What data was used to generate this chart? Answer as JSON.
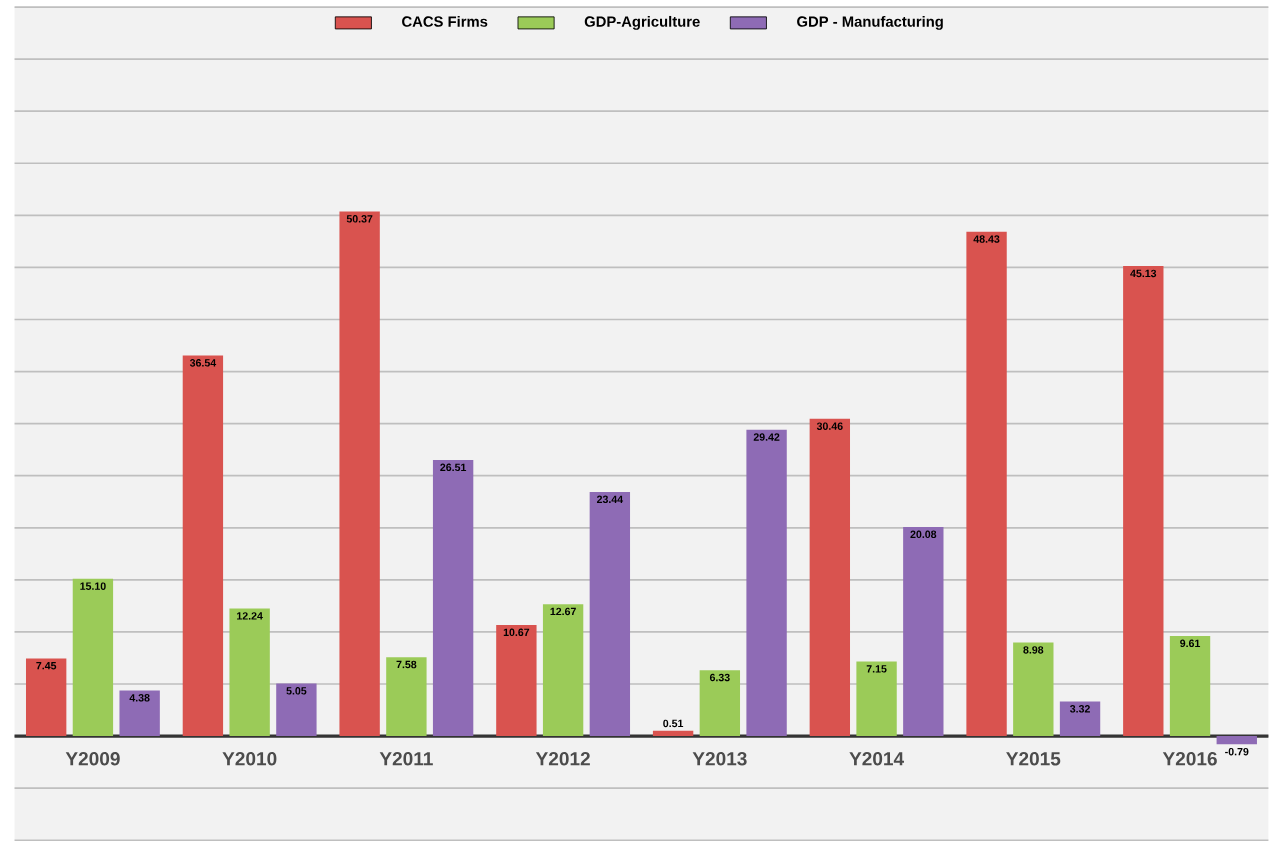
{
  "chart_data": {
    "type": "bar",
    "categories": [
      "Y2009",
      "Y2010",
      "Y2011",
      "Y2012",
      "Y2013",
      "Y2014",
      "Y2015",
      "Y2016"
    ],
    "series": [
      {
        "name": "CACS Firms",
        "color": "#d9534f",
        "values": [
          7.45,
          36.54,
          50.37,
          10.67,
          0.51,
          30.46,
          48.43,
          45.13
        ],
        "value_labels": [
          "7.45",
          "36.54",
          "50.37",
          "10.67",
          "0.51",
          "30.46",
          "48.43",
          "45.13"
        ]
      },
      {
        "name": "GDP-Agriculture",
        "color": "#9bcb58",
        "values": [
          15.1,
          12.24,
          7.58,
          12.67,
          6.33,
          7.15,
          8.98,
          9.61
        ],
        "value_labels": [
          "15.10",
          "12.24",
          "7.58",
          "12.67",
          "6.33",
          "7.15",
          "8.98",
          "9.61"
        ]
      },
      {
        "name": "GDP - Manufacturing",
        "color": "#8e6bb5",
        "values": [
          4.38,
          5.05,
          26.51,
          23.44,
          29.42,
          20.08,
          3.32,
          -0.79
        ],
        "value_labels": [
          "4.38",
          "5.05",
          "26.51",
          "23.44",
          "29.42",
          "20.08",
          "3.32",
          "-0.79"
        ]
      }
    ],
    "ylim": [
      -10,
      70
    ],
    "tick_labels": "x",
    "grid": "y",
    "legend": "top"
  }
}
